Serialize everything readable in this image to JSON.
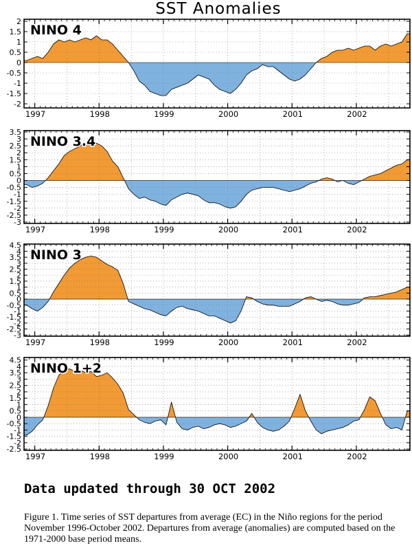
{
  "chart_data": {
    "type": "area",
    "title": "SST Anomalies",
    "colors": {
      "positive": "#f29a33",
      "negative": "#7fb2df",
      "line": "#000000",
      "zero_line": "#000000"
    },
    "x_ticks": [
      "1997",
      "1998",
      "1999",
      "2000",
      "2001",
      "2002"
    ],
    "x_range": [
      "1996-11",
      "2002-10"
    ],
    "grid": "dotted",
    "panels": [
      {
        "name": "NINO 4",
        "ylim": [
          -2.2,
          2.1
        ],
        "y_ticks": [
          "2",
          "1.5",
          "1",
          "0.5",
          "0",
          "-0.5",
          "-1",
          "-1.5",
          "-2"
        ],
        "y_tick_values": [
          2,
          1.5,
          1,
          0.5,
          0,
          -0.5,
          -1,
          -1.5,
          -2
        ],
        "x": [
          "1996-11",
          "1996-12",
          "1997-01",
          "1997-02",
          "1997-03",
          "1997-04",
          "1997-05",
          "1997-06",
          "1997-07",
          "1997-08",
          "1997-09",
          "1997-10",
          "1997-11",
          "1997-12",
          "1998-01",
          "1998-02",
          "1998-03",
          "1998-04",
          "1998-05",
          "1998-06",
          "1998-07",
          "1998-08",
          "1998-09",
          "1998-10",
          "1998-11",
          "1998-12",
          "1999-01",
          "1999-02",
          "1999-03",
          "1999-04",
          "1999-05",
          "1999-06",
          "1999-07",
          "1999-08",
          "1999-09",
          "1999-10",
          "1999-11",
          "1999-12",
          "2000-01",
          "2000-02",
          "2000-03",
          "2000-04",
          "2000-05",
          "2000-06",
          "2000-07",
          "2000-08",
          "2000-09",
          "2000-10",
          "2000-11",
          "2000-12",
          "2001-01",
          "2001-02",
          "2001-03",
          "2001-04",
          "2001-05",
          "2001-06",
          "2001-07",
          "2001-08",
          "2001-09",
          "2001-10",
          "2001-11",
          "2001-12",
          "2002-01",
          "2002-02",
          "2002-03",
          "2002-04",
          "2002-05",
          "2002-06",
          "2002-07",
          "2002-08",
          "2002-09",
          "2002-10"
        ],
        "values": [
          0.1,
          0.2,
          0.3,
          0.2,
          0.5,
          0.9,
          1.1,
          1.0,
          1.1,
          1.0,
          1.1,
          1.2,
          1.1,
          1.3,
          1.1,
          1.1,
          0.9,
          0.6,
          0.3,
          0.0,
          -0.4,
          -0.9,
          -1.1,
          -1.4,
          -1.5,
          -1.6,
          -1.6,
          -1.3,
          -1.2,
          -1.1,
          -1.0,
          -0.8,
          -0.6,
          -0.7,
          -0.8,
          -1.1,
          -1.3,
          -1.4,
          -1.5,
          -1.3,
          -1.0,
          -0.6,
          -0.4,
          -0.3,
          -0.1,
          -0.2,
          -0.2,
          -0.4,
          -0.6,
          -0.8,
          -0.9,
          -0.8,
          -0.6,
          -0.3,
          0.0,
          0.2,
          0.3,
          0.5,
          0.6,
          0.6,
          0.7,
          0.6,
          0.7,
          0.8,
          0.8,
          0.6,
          0.8,
          0.9,
          0.8,
          0.9,
          1.0,
          1.4
        ]
      },
      {
        "name": "NINO 3.4",
        "ylim": [
          -3.1,
          3.6
        ],
        "y_ticks": [
          "3.5",
          "3",
          "2.5",
          "2",
          "1.5",
          "1",
          "0.5",
          "0",
          "-0.5",
          "-1",
          "-1.5",
          "-2",
          "-2.5",
          "-3"
        ],
        "y_tick_values": [
          3.5,
          3,
          2.5,
          2,
          1.5,
          1,
          0.5,
          0,
          -0.5,
          -1,
          -1.5,
          -2,
          -2.5,
          -3
        ],
        "x": [
          "1996-11",
          "1996-12",
          "1997-01",
          "1997-02",
          "1997-03",
          "1997-04",
          "1997-05",
          "1997-06",
          "1997-07",
          "1997-08",
          "1997-09",
          "1997-10",
          "1997-11",
          "1997-12",
          "1998-01",
          "1998-02",
          "1998-03",
          "1998-04",
          "1998-05",
          "1998-06",
          "1998-07",
          "1998-08",
          "1998-09",
          "1998-10",
          "1998-11",
          "1998-12",
          "1999-01",
          "1999-02",
          "1999-03",
          "1999-04",
          "1999-05",
          "1999-06",
          "1999-07",
          "1999-08",
          "1999-09",
          "1999-10",
          "1999-11",
          "1999-12",
          "2000-01",
          "2000-02",
          "2000-03",
          "2000-04",
          "2000-05",
          "2000-06",
          "2000-07",
          "2000-08",
          "2000-09",
          "2000-10",
          "2000-11",
          "2000-12",
          "2001-01",
          "2001-02",
          "2001-03",
          "2001-04",
          "2001-05",
          "2001-06",
          "2001-07",
          "2001-08",
          "2001-09",
          "2001-10",
          "2001-11",
          "2001-12",
          "2002-01",
          "2002-02",
          "2002-03",
          "2002-04",
          "2002-05",
          "2002-06",
          "2002-07",
          "2002-08",
          "2002-09",
          "2002-10"
        ],
        "values": [
          -0.3,
          -0.5,
          -0.4,
          -0.2,
          0.2,
          0.7,
          1.2,
          1.8,
          2.1,
          2.3,
          2.5,
          2.7,
          2.8,
          2.7,
          2.5,
          2.1,
          1.4,
          1.0,
          0.2,
          -0.6,
          -1.0,
          -1.3,
          -1.2,
          -1.4,
          -1.5,
          -1.7,
          -1.8,
          -1.4,
          -1.2,
          -1.0,
          -0.9,
          -1.0,
          -1.1,
          -1.4,
          -1.6,
          -1.6,
          -1.7,
          -1.9,
          -2.0,
          -1.9,
          -1.5,
          -1.0,
          -0.7,
          -0.6,
          -0.5,
          -0.5,
          -0.5,
          -0.6,
          -0.7,
          -0.8,
          -0.7,
          -0.6,
          -0.4,
          -0.2,
          -0.1,
          0.1,
          0.2,
          0.1,
          -0.1,
          0.0,
          -0.2,
          -0.3,
          -0.1,
          0.1,
          0.3,
          0.4,
          0.5,
          0.7,
          0.9,
          1.1,
          1.2,
          1.5
        ]
      },
      {
        "name": "NINO 3",
        "ylim": [
          -3.1,
          4.6
        ],
        "y_ticks": [
          "4.5",
          "4",
          "3.5",
          "3",
          "2.5",
          "2",
          "1.5",
          "1",
          "0.5",
          "0",
          "-0.5",
          "-1",
          "-1.5",
          "-2",
          "-2.5",
          "-3"
        ],
        "y_tick_values": [
          4.5,
          4,
          3.5,
          3,
          2.5,
          2,
          1.5,
          1,
          0.5,
          0,
          -0.5,
          -1,
          -1.5,
          -2,
          -2.5,
          -3
        ],
        "x": [
          "1996-11",
          "1996-12",
          "1997-01",
          "1997-02",
          "1997-03",
          "1997-04",
          "1997-05",
          "1997-06",
          "1997-07",
          "1997-08",
          "1997-09",
          "1997-10",
          "1997-11",
          "1997-12",
          "1998-01",
          "1998-02",
          "1998-03",
          "1998-04",
          "1998-05",
          "1998-06",
          "1998-07",
          "1998-08",
          "1998-09",
          "1998-10",
          "1998-11",
          "1998-12",
          "1999-01",
          "1999-02",
          "1999-03",
          "1999-04",
          "1999-05",
          "1999-06",
          "1999-07",
          "1999-08",
          "1999-09",
          "1999-10",
          "1999-11",
          "1999-12",
          "2000-01",
          "2000-02",
          "2000-03",
          "2000-04",
          "2000-05",
          "2000-06",
          "2000-07",
          "2000-08",
          "2000-09",
          "2000-10",
          "2000-11",
          "2000-12",
          "2001-01",
          "2001-02",
          "2001-03",
          "2001-04",
          "2001-05",
          "2001-06",
          "2001-07",
          "2001-08",
          "2001-09",
          "2001-10",
          "2001-11",
          "2001-12",
          "2002-01",
          "2002-02",
          "2002-03",
          "2002-04",
          "2002-05",
          "2002-06",
          "2002-07",
          "2002-08",
          "2002-09",
          "2002-10"
        ],
        "values": [
          -0.5,
          -0.8,
          -1.0,
          -0.7,
          -0.2,
          0.6,
          1.3,
          2.0,
          2.6,
          3.0,
          3.3,
          3.5,
          3.6,
          3.5,
          3.2,
          2.9,
          2.7,
          2.4,
          1.3,
          -0.2,
          -0.4,
          -0.6,
          -0.8,
          -0.9,
          -1.1,
          -1.3,
          -1.4,
          -1.0,
          -0.7,
          -0.6,
          -0.8,
          -0.9,
          -1.0,
          -1.2,
          -1.4,
          -1.4,
          -1.6,
          -1.8,
          -2.0,
          -1.8,
          -1.0,
          0.2,
          0.1,
          -0.2,
          -0.4,
          -0.5,
          -0.5,
          -0.6,
          -0.6,
          -0.6,
          -0.4,
          -0.2,
          0.1,
          0.2,
          0.0,
          -0.2,
          -0.1,
          -0.2,
          -0.4,
          -0.5,
          -0.5,
          -0.4,
          -0.3,
          0.1,
          0.2,
          0.2,
          0.3,
          0.4,
          0.5,
          0.6,
          0.8,
          1.0
        ]
      },
      {
        "name": "NINO 1+2",
        "ylim": [
          -2.6,
          4.7
        ],
        "y_ticks": [
          "4.5",
          "4",
          "3.5",
          "3",
          "2.5",
          "2",
          "1.5",
          "1",
          "0.5",
          "0",
          "-0.5",
          "-1",
          "-1.5",
          "-2",
          "-2.5"
        ],
        "y_tick_values": [
          4.5,
          4,
          3.5,
          3,
          2.5,
          2,
          1.5,
          1,
          0.5,
          0,
          -0.5,
          -1,
          -1.5,
          -2,
          -2.5
        ],
        "x": [
          "1996-11",
          "1996-12",
          "1997-01",
          "1997-02",
          "1997-03",
          "1997-04",
          "1997-05",
          "1997-06",
          "1997-07",
          "1997-08",
          "1997-09",
          "1997-10",
          "1997-11",
          "1997-12",
          "1998-01",
          "1998-02",
          "1998-03",
          "1998-04",
          "1998-05",
          "1998-06",
          "1998-07",
          "1998-08",
          "1998-09",
          "1998-10",
          "1998-11",
          "1998-12",
          "1999-01",
          "1999-02",
          "1999-03",
          "1999-04",
          "1999-05",
          "1999-06",
          "1999-07",
          "1999-08",
          "1999-09",
          "1999-10",
          "1999-11",
          "1999-12",
          "2000-01",
          "2000-02",
          "2000-03",
          "2000-04",
          "2000-05",
          "2000-06",
          "2000-07",
          "2000-08",
          "2000-09",
          "2000-10",
          "2000-11",
          "2000-12",
          "2001-01",
          "2001-02",
          "2001-03",
          "2001-04",
          "2001-05",
          "2001-06",
          "2001-07",
          "2001-08",
          "2001-09",
          "2001-10",
          "2001-11",
          "2001-12",
          "2002-01",
          "2002-02",
          "2002-03",
          "2002-04",
          "2002-05",
          "2002-06",
          "2002-07",
          "2002-08",
          "2002-09",
          "2002-10"
        ],
        "values": [
          -1.4,
          -1.1,
          -0.6,
          -0.2,
          0.9,
          2.3,
          3.3,
          3.7,
          3.8,
          3.6,
          3.7,
          3.5,
          3.6,
          3.2,
          3.3,
          3.5,
          3.1,
          2.6,
          1.9,
          0.6,
          0.2,
          -0.2,
          -0.4,
          -0.5,
          -0.3,
          -0.2,
          -0.6,
          1.2,
          -0.4,
          -0.9,
          -1.0,
          -0.8,
          -0.7,
          -0.9,
          -0.8,
          -0.6,
          -0.5,
          -0.6,
          -0.8,
          -0.7,
          -0.5,
          -0.3,
          0.3,
          -0.4,
          -0.8,
          -1.0,
          -1.1,
          -1.0,
          -0.7,
          -0.3,
          0.7,
          1.8,
          0.5,
          -0.3,
          -1.0,
          -1.3,
          -1.1,
          -1.0,
          -0.9,
          -0.8,
          -0.6,
          -0.3,
          -0.2,
          0.6,
          1.6,
          1.3,
          0.3,
          -0.6,
          -0.9,
          -0.8,
          -1.0,
          0.5
        ]
      }
    ]
  },
  "footer": {
    "updated": "Data updated through 30 OCT 2002",
    "caption": "Figure 1. Time series of SST departures from average (EC) in the Niño regions for the period November 1996-October 2002. Departures from average (anomalies) are computed based on the 1971-2000 base period means."
  }
}
